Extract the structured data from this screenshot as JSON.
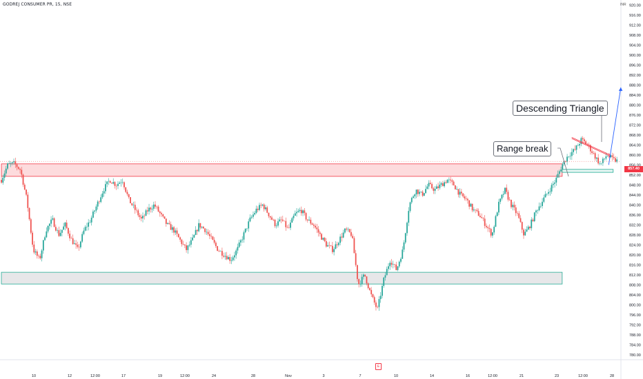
{
  "header": {
    "title": "GODREJ CONSUMER PR, 15, NSE",
    "currency": "INR"
  },
  "annotations": {
    "range_break": "Range break",
    "descending_triangle": "Descending Triangle",
    "earnings_marker": "E"
  },
  "colors": {
    "up": "#26a69a",
    "down": "#ef5350",
    "resistance_zone": "#f23645",
    "support_zone": "#22ab94",
    "projection": "#2962ff",
    "label_bg": "#f23645"
  },
  "chart_data": {
    "type": "candlestick",
    "ylim": [
      778,
      922
    ],
    "y_ticks": [
      "920.00",
      "916.00",
      "912.00",
      "908.00",
      "904.00",
      "900.00",
      "896.00",
      "892.00",
      "888.00",
      "884.00",
      "880.00",
      "876.00",
      "872.00",
      "868.00",
      "864.00",
      "860.00",
      "856.00",
      "852.00",
      "848.00",
      "844.00",
      "840.00",
      "836.00",
      "832.00",
      "828.00",
      "824.00",
      "820.00",
      "816.00",
      "812.00",
      "808.00",
      "804.00",
      "800.00",
      "796.00",
      "792.00",
      "788.00",
      "784.00",
      "780.00"
    ],
    "x_ticks": [
      "10",
      "12",
      "12:00",
      "17",
      "19",
      "12:00",
      "24",
      "28",
      "Nov",
      "3",
      "7",
      "10",
      "14",
      "16",
      "12:00",
      "21",
      "23",
      "12:00",
      "28"
    ],
    "last_price": "857.40",
    "price_path": [
      [
        0,
        850
      ],
      [
        1,
        856
      ],
      [
        2,
        856.5
      ],
      [
        3,
        854
      ],
      [
        4,
        842
      ],
      [
        5,
        822
      ],
      [
        6,
        818
      ],
      [
        7,
        830
      ],
      [
        8,
        834
      ],
      [
        9,
        828
      ],
      [
        10,
        832
      ],
      [
        11,
        826
      ],
      [
        12,
        822
      ],
      [
        13,
        830
      ],
      [
        14,
        834
      ],
      [
        15,
        840
      ],
      [
        16,
        846
      ],
      [
        17,
        850
      ],
      [
        18,
        848
      ],
      [
        19,
        850
      ],
      [
        20,
        842
      ],
      [
        21,
        838
      ],
      [
        22,
        834
      ],
      [
        23,
        838
      ],
      [
        24,
        840
      ],
      [
        25,
        836
      ],
      [
        26,
        832
      ],
      [
        27,
        830
      ],
      [
        28,
        826
      ],
      [
        29,
        822
      ],
      [
        30,
        826
      ],
      [
        31,
        832
      ],
      [
        32,
        830
      ],
      [
        33,
        826
      ],
      [
        34,
        822
      ],
      [
        35,
        820
      ],
      [
        36,
        818
      ],
      [
        37,
        822
      ],
      [
        38,
        828
      ],
      [
        39,
        834
      ],
      [
        40,
        838
      ],
      [
        41,
        840
      ],
      [
        42,
        836
      ],
      [
        43,
        832
      ],
      [
        44,
        834
      ],
      [
        45,
        830
      ],
      [
        46,
        836
      ],
      [
        47,
        838
      ],
      [
        48,
        834
      ],
      [
        49,
        832
      ],
      [
        50,
        828
      ],
      [
        51,
        824
      ],
      [
        52,
        822
      ],
      [
        53,
        826
      ],
      [
        54,
        830
      ],
      [
        55,
        828
      ],
      [
        56,
        808
      ],
      [
        57,
        812
      ],
      [
        58,
        804
      ],
      [
        59,
        798
      ],
      [
        60,
        810
      ],
      [
        61,
        818
      ],
      [
        62,
        814
      ],
      [
        63,
        822
      ],
      [
        64,
        840
      ],
      [
        65,
        846
      ],
      [
        66,
        844
      ],
      [
        67,
        848
      ],
      [
        68,
        846
      ],
      [
        69,
        848
      ],
      [
        70,
        850
      ],
      [
        71,
        848
      ],
      [
        72,
        844
      ],
      [
        73,
        842
      ],
      [
        74,
        838
      ],
      [
        75,
        836
      ],
      [
        76,
        832
      ],
      [
        77,
        828
      ],
      [
        78,
        840
      ],
      [
        79,
        846
      ],
      [
        80,
        840
      ],
      [
        81,
        836
      ],
      [
        82,
        828
      ],
      [
        83,
        832
      ],
      [
        84,
        838
      ],
      [
        85,
        842
      ],
      [
        86,
        846
      ],
      [
        87,
        850
      ],
      [
        88,
        856
      ],
      [
        89,
        860
      ],
      [
        90,
        862
      ],
      [
        91,
        866
      ],
      [
        92,
        864
      ],
      [
        93,
        860
      ],
      [
        94,
        856
      ],
      [
        95,
        860
      ],
      [
        96,
        858
      ],
      [
        97,
        857.4
      ]
    ],
    "levels": [
      {
        "name": "resistance-zone",
        "low": 851.4,
        "high": 856.4,
        "from": 0,
        "to": 88
      },
      {
        "name": "support-zone",
        "low": 808.3,
        "high": 813.0,
        "from": 0,
        "to": 88
      },
      {
        "name": "retest-zone",
        "low": 853.0,
        "high": 854.2,
        "from": 88,
        "to": 96
      }
    ],
    "triangle_resistance": {
      "x": [
        89.5,
        95.5
      ],
      "y": [
        867,
        860
      ]
    },
    "projection": {
      "x": [
        95.3,
        97.2
      ],
      "y": [
        856,
        887
      ]
    }
  }
}
